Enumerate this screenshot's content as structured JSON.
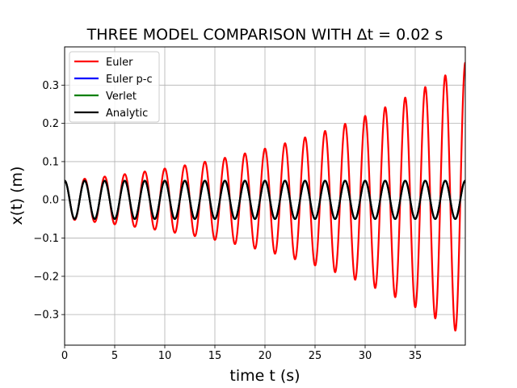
{
  "chart_data": {
    "type": "line",
    "title": "THREE MODEL COMPARISON WITH Δt = 0.02 s",
    "xlabel": "time t (s)",
    "ylabel": "x(t) (m)",
    "xlim": [
      0,
      40
    ],
    "ylim": [
      -0.38,
      0.4
    ],
    "x_ticks": [
      0,
      5,
      10,
      15,
      20,
      25,
      30,
      35
    ],
    "x_tick_labels": [
      "0",
      "5",
      "10",
      "15",
      "20",
      "25",
      "30",
      "35"
    ],
    "y_ticks": [
      -0.3,
      -0.2,
      -0.1,
      0.0,
      0.1,
      0.2,
      0.3
    ],
    "y_tick_labels": [
      "−0.3",
      "−0.2",
      "−0.1",
      "0.0",
      "0.1",
      "0.2",
      "0.3"
    ],
    "grid": true,
    "legend_position": "top-left",
    "x_range": [
      0,
      40
    ],
    "sample_step": 0.02,
    "series": [
      {
        "name": "Euler",
        "color": "#ff0000",
        "model": "cosine with exponentially growing amplitude",
        "amplitude": 0.05,
        "period": 2.0,
        "growth_rate": 0.0493
      },
      {
        "name": "Euler p-c",
        "color": "#0000ff",
        "model": "cosine",
        "amplitude": 0.05,
        "period": 2.0,
        "growth_rate": 0
      },
      {
        "name": "Verlet",
        "color": "#008000",
        "model": "cosine",
        "amplitude": 0.05,
        "period": 2.0,
        "growth_rate": 0
      },
      {
        "name": "Analytic",
        "color": "#000000",
        "model": "cosine",
        "amplitude": 0.05,
        "period": 2.0,
        "growth_rate": 0
      }
    ]
  }
}
